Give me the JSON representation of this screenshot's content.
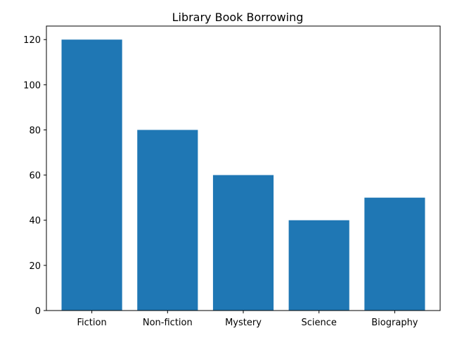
{
  "chart_data": {
    "type": "bar",
    "title": "Library Book Borrowing",
    "xlabel": "",
    "ylabel": "",
    "categories": [
      "Fiction",
      "Non-fiction",
      "Mystery",
      "Science",
      "Biography"
    ],
    "values": [
      120,
      80,
      60,
      40,
      50
    ],
    "ylim": [
      0,
      126
    ],
    "yticks": [
      0,
      20,
      40,
      60,
      80,
      100,
      120
    ],
    "grid": false,
    "bar_color": "#1f77b4"
  }
}
